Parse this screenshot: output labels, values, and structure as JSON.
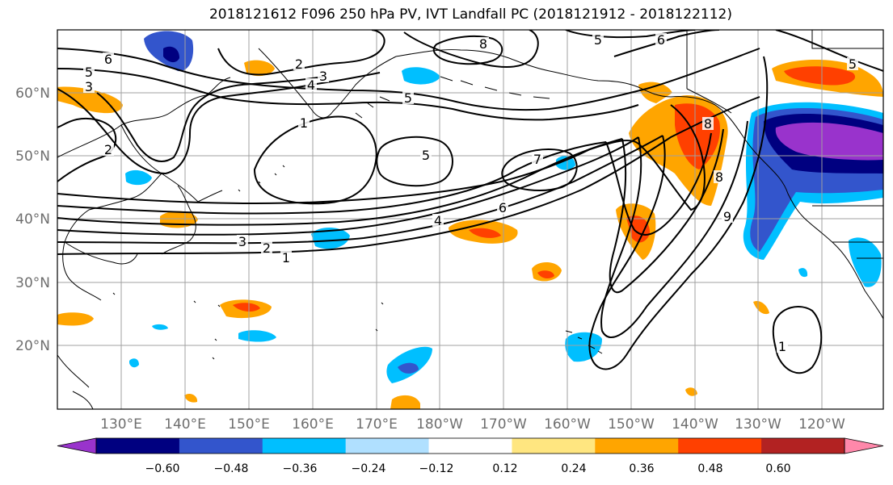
{
  "title": "2018121612 F096 250 hPa PV, IVT Landfall PC (2018121912 - 2018122112)",
  "lat_ticks": [
    "20°N",
    "30°N",
    "40°N",
    "50°N",
    "60°N"
  ],
  "lon_ticks": [
    "130°E",
    "140°E",
    "150°E",
    "160°E",
    "170°E",
    "180°W",
    "170°W",
    "160°W",
    "150°W",
    "140°W",
    "130°W",
    "120°W"
  ],
  "colorbar": {
    "colors": [
      "#9933cc",
      "#000080",
      "#3355cc",
      "#00bfff",
      "#b0e0ff",
      "#ffffff",
      "#ffe680",
      "#ffa500",
      "#ff4000",
      "#b22222",
      "#ff88aa"
    ],
    "labels": [
      "−0.60",
      "−0.48",
      "−0.36",
      "−0.24",
      "−0.12",
      "0.12",
      "0.24",
      "0.36",
      "0.48",
      "0.60"
    ],
    "extend": "both"
  },
  "contour_labels": [
    {
      "text": "6"
    },
    {
      "text": "5"
    },
    {
      "text": "3"
    },
    {
      "text": "2"
    },
    {
      "text": "3"
    },
    {
      "text": "4"
    },
    {
      "text": "5"
    },
    {
      "text": "8"
    },
    {
      "text": "5"
    },
    {
      "text": "6"
    },
    {
      "text": "5"
    },
    {
      "text": "1"
    },
    {
      "text": "2"
    },
    {
      "text": "5"
    },
    {
      "text": "7"
    },
    {
      "text": "6"
    },
    {
      "text": "4"
    },
    {
      "text": "3"
    },
    {
      "text": "2"
    },
    {
      "text": "1"
    },
    {
      "text": "8"
    },
    {
      "text": "8"
    },
    {
      "text": "9"
    },
    {
      "text": "1"
    }
  ]
}
